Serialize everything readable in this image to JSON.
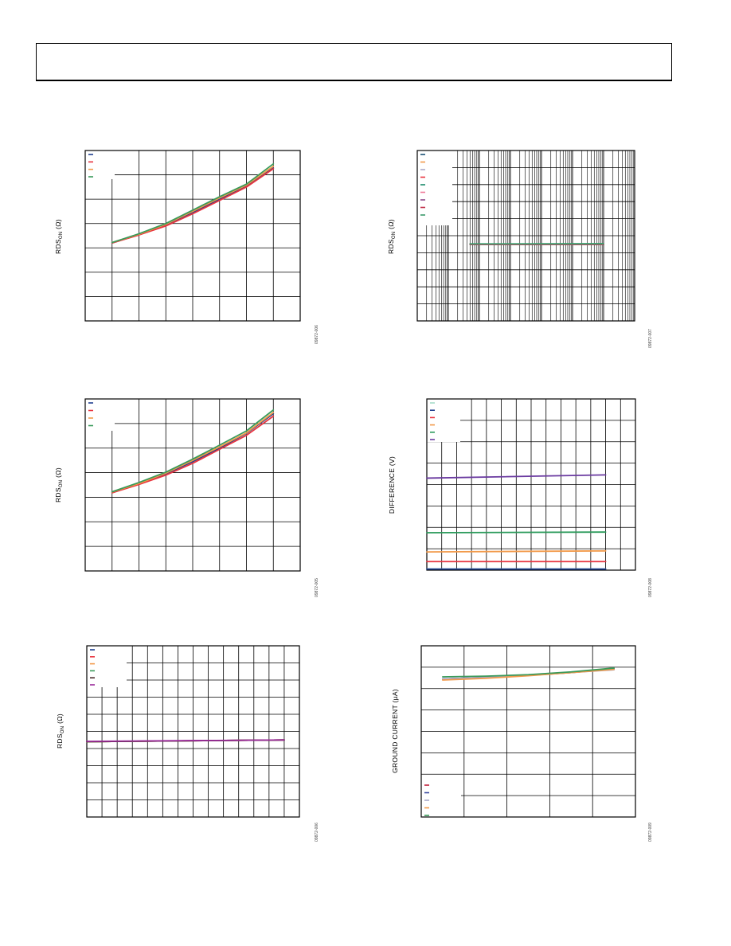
{
  "header": {
    "text": ""
  },
  "chart_data": [
    {
      "id": "c1",
      "type": "line",
      "ylabel_main": "RDS",
      "ylabel_sub": "ON",
      "ylabel_unit": " (Ω)",
      "code": "09872-006",
      "x": [
        0,
        1,
        2,
        3,
        4,
        5,
        6
      ],
      "xlim": [
        -1,
        7
      ],
      "ylim": [
        0,
        7
      ],
      "grid": {
        "x": 8,
        "y": 7,
        "type": "linear"
      },
      "legend": {
        "placement": "top-left",
        "count": 4
      },
      "series": [
        {
          "color": "#1f3f8f",
          "values": [
            3.2,
            3.55,
            3.95,
            4.45,
            5.0,
            5.55,
            6.28
          ]
        },
        {
          "color": "#e8343f",
          "values": [
            3.2,
            3.53,
            3.9,
            4.4,
            4.95,
            5.5,
            6.25
          ]
        },
        {
          "color": "#f29a4a",
          "values": [
            3.22,
            3.56,
            3.97,
            4.5,
            5.05,
            5.58,
            6.35
          ]
        },
        {
          "color": "#3a9a5a",
          "values": [
            3.22,
            3.58,
            4.0,
            4.55,
            5.1,
            5.62,
            6.45
          ]
        }
      ]
    },
    {
      "id": "c2",
      "type": "line",
      "ylabel_main": "RDS",
      "ylabel_sub": "ON",
      "ylabel_unit": " (Ω)",
      "code": "09872-007",
      "x": [
        -0.3,
        4.0
      ],
      "xlim": [
        -2,
        5
      ],
      "ylim": [
        0,
        10
      ],
      "grid": {
        "x": 7,
        "y": 10,
        "type": "log"
      },
      "legend": {
        "placement": "top-left",
        "count": 9
      },
      "series": [
        {
          "color": "#1a5276",
          "values": [
            4.5,
            4.5
          ]
        },
        {
          "color": "#f29a4a",
          "values": [
            4.5,
            4.5
          ]
        },
        {
          "color": "#a8a8c8",
          "values": [
            4.5,
            4.5
          ]
        },
        {
          "color": "#e8343f",
          "values": [
            4.5,
            4.5
          ]
        },
        {
          "color": "#1a8a6a",
          "values": [
            4.5,
            4.5
          ]
        },
        {
          "color": "#f07a9a",
          "values": [
            4.5,
            4.5
          ]
        },
        {
          "color": "#8a4a8a",
          "values": [
            4.5,
            4.5
          ]
        },
        {
          "color": "#c0304a",
          "values": [
            4.5,
            4.5
          ]
        },
        {
          "color": "#3a9a6a",
          "values": [
            4.52,
            4.53
          ]
        }
      ]
    },
    {
      "id": "c3",
      "type": "line",
      "ylabel_main": "RDS",
      "ylabel_sub": "ON",
      "ylabel_unit": " (Ω)",
      "code": "09872-005",
      "x": [
        0,
        1,
        2,
        3,
        4,
        5,
        6
      ],
      "xlim": [
        -1,
        7
      ],
      "ylim": [
        0,
        7
      ],
      "grid": {
        "x": 8,
        "y": 7,
        "type": "linear"
      },
      "legend": {
        "placement": "top-left",
        "count": 4
      },
      "series": [
        {
          "color": "#1f3f8f",
          "values": [
            3.2,
            3.55,
            3.95,
            4.45,
            5.0,
            5.6,
            6.4
          ]
        },
        {
          "color": "#e8343f",
          "values": [
            3.18,
            3.52,
            3.9,
            4.38,
            4.95,
            5.52,
            6.3
          ]
        },
        {
          "color": "#f29a4a",
          "values": [
            3.21,
            3.56,
            3.98,
            4.5,
            5.05,
            5.62,
            6.45
          ]
        },
        {
          "color": "#3a9a5a",
          "values": [
            3.22,
            3.6,
            4.02,
            4.55,
            5.12,
            5.7,
            6.55
          ]
        }
      ]
    },
    {
      "id": "c4",
      "type": "line",
      "ylabel_main": "DIFFERENCE",
      "ylabel_sub": "",
      "ylabel_unit": " (V)",
      "code": "09872-008",
      "x": [
        0,
        12
      ],
      "xlim": [
        0,
        14
      ],
      "ylim": [
        0,
        8
      ],
      "grid": {
        "x": 14,
        "y": 8,
        "type": "linear"
      },
      "legend": {
        "placement": "top-left",
        "count": 6
      },
      "series": [
        {
          "color": "#a6dcc8",
          "values": [
            0.05,
            0.05
          ]
        },
        {
          "color": "#1f3f8f",
          "values": [
            0.05,
            0.05
          ]
        },
        {
          "color": "#e8343f",
          "values": [
            0.4,
            0.4
          ]
        },
        {
          "color": "#f29a4a",
          "values": [
            0.85,
            0.9
          ]
        },
        {
          "color": "#2a9a5a",
          "values": [
            1.75,
            1.78
          ]
        },
        {
          "color": "#6a3aa0",
          "values": [
            4.3,
            4.45
          ]
        }
      ]
    },
    {
      "id": "c5",
      "type": "line",
      "ylabel_main": "RDS",
      "ylabel_sub": "ON",
      "ylabel_unit": " (Ω)",
      "code": "09872-006",
      "x": [
        0,
        13
      ],
      "xlim": [
        0,
        14
      ],
      "ylim": [
        0,
        10
      ],
      "grid": {
        "x": 14,
        "y": 10,
        "type": "linear"
      },
      "legend": {
        "placement": "top-left",
        "count": 6
      },
      "series": [
        {
          "color": "#1f3f8f",
          "values": [
            4.4,
            4.5
          ]
        },
        {
          "color": "#e8343f",
          "values": [
            4.4,
            4.5
          ]
        },
        {
          "color": "#f29a4a",
          "values": [
            4.4,
            4.5
          ]
        },
        {
          "color": "#3a9a5a",
          "values": [
            4.4,
            4.5
          ]
        },
        {
          "color": "#4a2a2a",
          "values": [
            4.4,
            4.5
          ]
        },
        {
          "color": "#9a2a9a",
          "values": [
            4.42,
            4.5
          ]
        }
      ]
    },
    {
      "id": "c6",
      "type": "line",
      "ylabel_main": "GROUND CURRENT",
      "ylabel_sub": "",
      "ylabel_unit": " (µA)",
      "code": "09872-009",
      "x": [
        0,
        1,
        2,
        3,
        4
      ],
      "xlim": [
        -0.5,
        4.5
      ],
      "ylim": [
        0,
        8
      ],
      "grid": {
        "x": 5,
        "y": 8,
        "type": "linear"
      },
      "legend": {
        "placement": "bottom-left",
        "count": 5
      },
      "series": [
        {
          "color": "#c0203a",
          "values": [
            6.45,
            6.52,
            6.62,
            6.75,
            6.92
          ]
        },
        {
          "color": "#3a4aa0",
          "values": [
            6.45,
            6.52,
            6.62,
            6.75,
            6.92
          ]
        },
        {
          "color": "#a8a8c8",
          "values": [
            6.45,
            6.52,
            6.62,
            6.75,
            6.88
          ]
        },
        {
          "color": "#f29a4a",
          "values": [
            6.4,
            6.48,
            6.6,
            6.75,
            6.9
          ]
        },
        {
          "color": "#3a9a5a",
          "values": [
            6.55,
            6.58,
            6.65,
            6.78,
            6.96
          ]
        }
      ]
    }
  ]
}
